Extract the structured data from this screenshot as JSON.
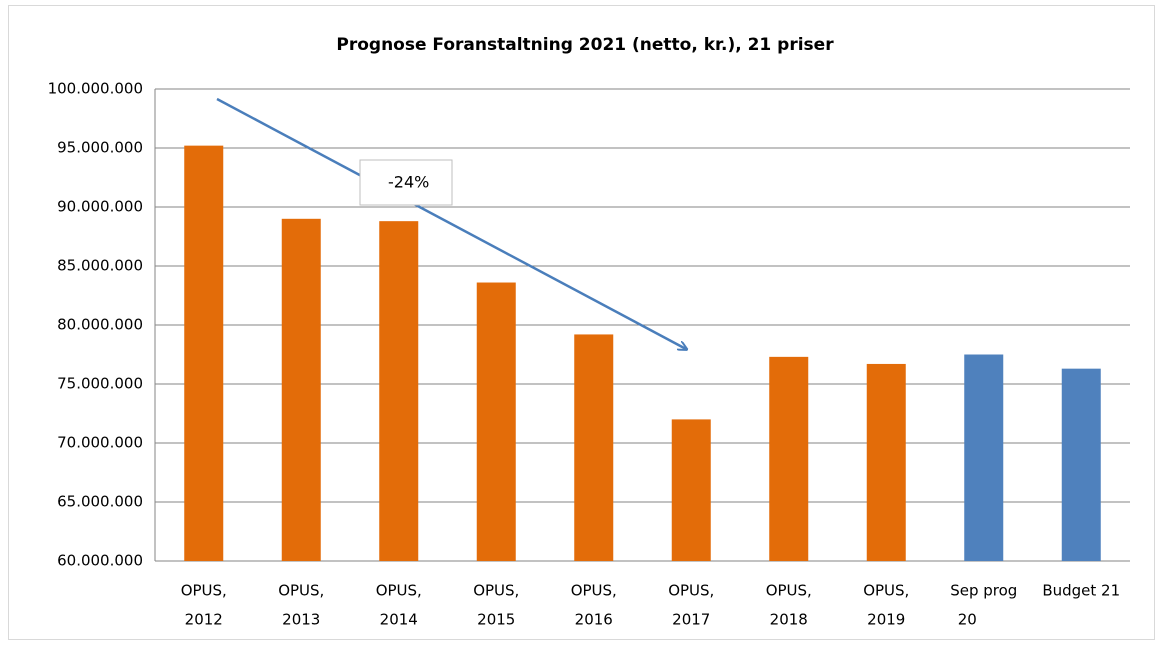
{
  "chart_data": {
    "type": "bar",
    "title": "Prognose Foranstaltning 2021 (netto, kr.), 21 priser",
    "categories": [
      [
        "OPUS,",
        "2012"
      ],
      [
        "OPUS,",
        "2013"
      ],
      [
        "OPUS,",
        "2014"
      ],
      [
        "OPUS,",
        "2015"
      ],
      [
        "OPUS,",
        "2016"
      ],
      [
        "OPUS,",
        "2017"
      ],
      [
        "OPUS,",
        "2018"
      ],
      [
        "OPUS,",
        "2019"
      ],
      [
        "Sep prog",
        "20"
      ],
      [
        "Budget 21"
      ]
    ],
    "values": [
      95200000,
      89000000,
      88800000,
      83600000,
      79200000,
      72000000,
      77300000,
      76700000,
      77500000,
      76300000
    ],
    "colors": [
      "#e36c09",
      "#e36c09",
      "#e36c09",
      "#e36c09",
      "#e36c09",
      "#e36c09",
      "#e36c09",
      "#e36c09",
      "#4f81bd",
      "#4f81bd"
    ],
    "ylim": [
      60000000,
      100000000
    ],
    "yticks": [
      {
        "value": 60000000,
        "label": "60.000.000"
      },
      {
        "value": 65000000,
        "label": "65.000.000"
      },
      {
        "value": 70000000,
        "label": "70.000.000"
      },
      {
        "value": 75000000,
        "label": "75.000.000"
      },
      {
        "value": 80000000,
        "label": "80.000.000"
      },
      {
        "value": 85000000,
        "label": "85.000.000"
      },
      {
        "value": 90000000,
        "label": "90.000.000"
      },
      {
        "value": 95000000,
        "label": "95.000.000"
      },
      {
        "value": 100000000,
        "label": "100.000.000"
      }
    ],
    "grid": true,
    "annotation": "-24%"
  }
}
